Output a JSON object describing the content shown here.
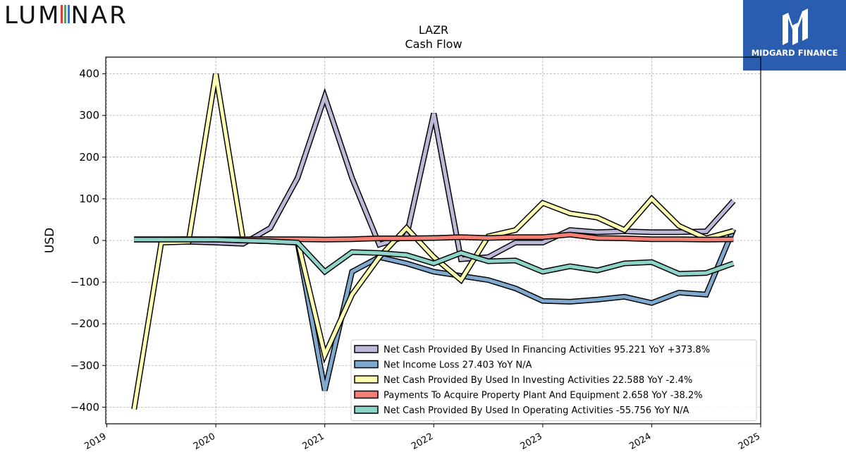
{
  "branding": {
    "left_logo_text": "LUMINAR",
    "right_logo_text": "MIDGARD FINANCE",
    "right_logo_icon": "midgard-m-icon",
    "right_logo_bg": "#2a5db0"
  },
  "chart_data": {
    "type": "line",
    "title": "LAZR",
    "subtitle": "Cash Flow",
    "xlabel": "",
    "ylabel": "USD",
    "xlim": [
      2018.99,
      2025.0
    ],
    "ylim": [
      -440,
      440
    ],
    "grid": true,
    "legend_position": "bottom-right",
    "x_ticks": [
      "2019",
      "2020",
      "2021",
      "2022",
      "2023",
      "2024",
      "2025"
    ],
    "y_ticks": [
      "400",
      "300",
      "200",
      "100",
      "0",
      "−100",
      "−200",
      "−300",
      "−400"
    ],
    "y_tick_values": [
      400,
      300,
      200,
      100,
      0,
      -100,
      -200,
      -300,
      -400
    ],
    "x_tick_values": [
      2019,
      2020,
      2021,
      2022,
      2023,
      2024,
      2025
    ],
    "series": [
      {
        "name": "Net Cash Provided By Used In Financing Activities",
        "legend": "Net Cash Provided By Used In Financing Activities  95.221 YoY +373.8%",
        "color": "#bcb9d8",
        "x": [
          2019.75,
          2020.0,
          2020.25,
          2020.5,
          2020.75,
          2021.0,
          2021.25,
          2021.5,
          2021.75,
          2022.0,
          2022.25,
          2022.5,
          2022.75,
          2023.0,
          2023.25,
          2023.5,
          2023.75,
          2024.0,
          2024.25,
          2024.5,
          2024.75
        ],
        "y": [
          -3,
          -5,
          -8,
          30,
          150,
          345,
          150,
          -10,
          10,
          305,
          -45,
          -40,
          -5,
          -5,
          25,
          20,
          22,
          20,
          20,
          22,
          95
        ]
      },
      {
        "name": "Net Income Loss",
        "legend": "Net Income Loss  27.403 YoY N/A",
        "color": "#7fa9cf",
        "x": [
          2019.25,
          2019.5,
          2019.75,
          2020.0,
          2020.25,
          2020.5,
          2020.75,
          2021.0,
          2021.25,
          2021.5,
          2021.75,
          2022.0,
          2022.25,
          2022.5,
          2022.75,
          2023.0,
          2023.25,
          2023.5,
          2023.75,
          2024.0,
          2024.25,
          2024.5,
          2024.75
        ],
        "y": [
          2,
          2,
          3,
          2,
          0,
          -2,
          -5,
          -360,
          -75,
          -40,
          -55,
          -75,
          -85,
          -95,
          -115,
          -145,
          -147,
          -142,
          -135,
          -150,
          -125,
          -130,
          27
        ]
      },
      {
        "name": "Net Cash Provided By Used In Investing Activities",
        "legend": "Net Cash Provided By Used In Investing Activities  22.588 YoY -2.4%",
        "color": "#ffffb3",
        "x": [
          2019.25,
          2019.5,
          2019.75,
          2020.0,
          2020.25,
          2020.5,
          2020.75,
          2021.0,
          2021.25,
          2021.5,
          2021.75,
          2022.0,
          2022.25,
          2022.5,
          2022.75,
          2023.0,
          2023.25,
          2023.5,
          2023.75,
          2024.0,
          2024.25,
          2024.5,
          2024.75
        ],
        "y": [
          -405,
          -5,
          -3,
          400,
          2,
          3,
          0,
          -275,
          -130,
          -40,
          30,
          -40,
          -95,
          10,
          25,
          90,
          65,
          55,
          25,
          100,
          35,
          5,
          23
        ]
      },
      {
        "name": "Payments To Acquire Property Plant And Equipment",
        "legend": "Payments To Acquire Property Plant And Equipment  2.658 YoY -38.2%",
        "color": "#f47f72",
        "x": [
          2019.25,
          2019.5,
          2019.75,
          2020.0,
          2020.25,
          2020.5,
          2020.75,
          2021.0,
          2021.25,
          2021.5,
          2021.75,
          2022.0,
          2022.25,
          2022.5,
          2022.75,
          2023.0,
          2023.25,
          2023.5,
          2023.75,
          2024.0,
          2024.25,
          2024.5,
          2024.75
        ],
        "y": [
          3,
          3,
          3,
          3,
          3,
          3,
          3,
          2,
          3,
          5,
          5,
          6,
          8,
          6,
          8,
          8,
          14,
          6,
          5,
          3,
          3,
          2,
          3
        ]
      },
      {
        "name": "Net Cash Provided By Used In Operating Activities",
        "legend": "Net Cash Provided By Used In Operating Activities  -55.756 YoY N/A",
        "color": "#8dd3c7",
        "x": [
          2019.25,
          2019.5,
          2019.75,
          2020.0,
          2020.25,
          2020.5,
          2020.75,
          2021.0,
          2021.25,
          2021.5,
          2021.75,
          2022.0,
          2022.25,
          2022.5,
          2022.75,
          2023.0,
          2023.25,
          2023.5,
          2023.75,
          2024.0,
          2024.25,
          2024.5,
          2024.75
        ],
        "y": [
          2,
          2,
          2,
          2,
          0,
          -2,
          -5,
          -75,
          -28,
          -30,
          -35,
          -55,
          -30,
          -50,
          -48,
          -75,
          -62,
          -72,
          -55,
          -52,
          -80,
          -78,
          -55
        ]
      }
    ]
  }
}
